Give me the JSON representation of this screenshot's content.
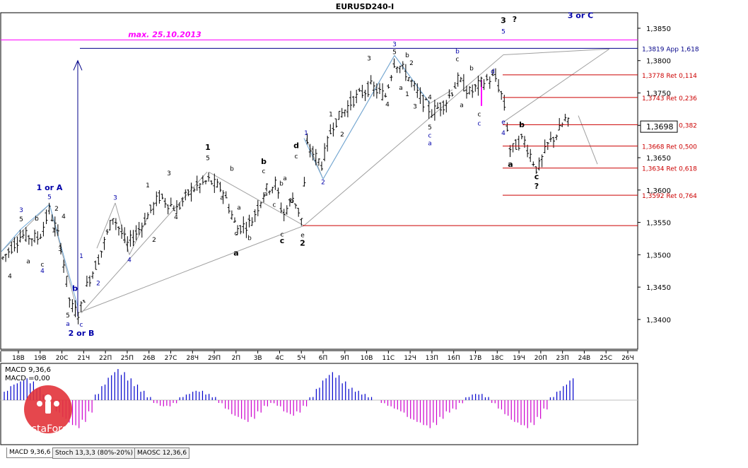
{
  "window_title": "EURUSD240-I",
  "colors": {
    "background": "#ffffff",
    "candle": "#000000",
    "magenta": "#ff00ff",
    "blue_label": "#0000aa",
    "red_level": "#cc0000",
    "grid": "#000000",
    "macd_pos": "#0000cc",
    "macd_neg": "#cc00cc",
    "logo": "#e2333a"
  },
  "annotations": {
    "max_label": "max. 25.10.2013",
    "wave_top_label": "3 or C",
    "one_or_a": "1 or A",
    "two_or_b": "2 or B",
    "question_top": "?",
    "question_low": "?"
  },
  "chart_data": {
    "type": "candlestick",
    "title": "EURUSD240-I",
    "ylim": [
      1.3354,
      1.3874
    ],
    "y_ticks": [
      "1,3850",
      "1,3800",
      "1,3750",
      "1,3700",
      "1,3650",
      "1,3600",
      "1,3550",
      "1,3500",
      "1,3450",
      "1,3400"
    ],
    "y_tick_values": [
      1.385,
      1.38,
      1.375,
      1.37,
      1.365,
      1.36,
      1.355,
      1.35,
      1.345,
      1.34
    ],
    "current_price_label": "1,3698",
    "current_price": 1.3698,
    "x_ticks": [
      "18В",
      "19В",
      "20С",
      "21Ч",
      "22П",
      "25П",
      "26В",
      "27С",
      "28Ч",
      "29П",
      "2П",
      "3В",
      "4С",
      "5Ч",
      "6П",
      "9П",
      "10В",
      "11С",
      "12Ч",
      "13П",
      "16П",
      "17В",
      "18С",
      "19Ч",
      "20П",
      "23П",
      "24В",
      "25С",
      "26Ч"
    ],
    "levels": [
      {
        "label": "1,3819 App 1,618",
        "value": 1.3819
      },
      {
        "label": "1,3778 Ret 0,114",
        "value": 1.3778
      },
      {
        "label": "1,3743 Ret 0,236",
        "value": 1.3743
      },
      {
        "label": "1,3701 Ret 0,382",
        "value": 1.3701
      },
      {
        "label": "1,3668 Ret 0,500",
        "value": 1.3668
      },
      {
        "label": "1,3634 Ret 0,618",
        "value": 1.3634
      },
      {
        "label": "1,3592 Ret 0,764",
        "value": 1.3592
      }
    ],
    "max_level": 1.3832,
    "wave_labels": [
      {
        "t": "4",
        "x": 14,
        "p": 1.3464,
        "c": "#000000",
        "b": 0
      },
      {
        "t": "3",
        "x": 30,
        "p": 1.3566,
        "c": "#0000aa",
        "b": 0
      },
      {
        "t": "5",
        "x": 30,
        "p": 1.3552,
        "c": "#000000",
        "b": 0
      },
      {
        "t": "a",
        "x": 40,
        "p": 1.3487,
        "c": "#000000",
        "b": 0
      },
      {
        "t": "b",
        "x": 52,
        "p": 1.3553,
        "c": "#000000",
        "b": 0
      },
      {
        "t": "c",
        "x": 60,
        "p": 1.3482,
        "c": "#000000",
        "b": 0
      },
      {
        "t": "4",
        "x": 60,
        "p": 1.3472,
        "c": "#0000aa",
        "b": 0
      },
      {
        "t": "1 or A",
        "x": 70,
        "p": 1.36,
        "c": "#0000aa",
        "b": 1
      },
      {
        "t": "5",
        "x": 70,
        "p": 1.3586,
        "c": "#0000aa",
        "b": 0
      },
      {
        "t": "2",
        "x": 80,
        "p": 1.3568,
        "c": "#000000",
        "b": 0
      },
      {
        "t": "4",
        "x": 90,
        "p": 1.3556,
        "c": "#000000",
        "b": 0
      },
      {
        "t": "1",
        "x": 76,
        "p": 1.3535,
        "c": "#000000",
        "b": 0
      },
      {
        "t": "3",
        "x": 85,
        "p": 1.3506,
        "c": "#000000",
        "b": 0
      },
      {
        "t": "5",
        "x": 96,
        "p": 1.3403,
        "c": "#000000",
        "b": 0
      },
      {
        "t": "a",
        "x": 96,
        "p": 1.339,
        "c": "#0000aa",
        "b": 0
      },
      {
        "t": "b",
        "x": 106,
        "p": 1.3444,
        "c": "#0000aa",
        "b": 1
      },
      {
        "t": "c",
        "x": 115,
        "p": 1.3389,
        "c": "#0000aa",
        "b": 0
      },
      {
        "t": "2 or B",
        "x": 115,
        "p": 1.3375,
        "c": "#0000aa",
        "b": 1
      },
      {
        "t": "1",
        "x": 115,
        "p": 1.3495,
        "c": "#0000aa",
        "b": 0
      },
      {
        "t": "2",
        "x": 139,
        "p": 1.3453,
        "c": "#0000aa",
        "b": 0
      },
      {
        "t": "3",
        "x": 163,
        "p": 1.3585,
        "c": "#0000aa",
        "b": 0
      },
      {
        "t": "4",
        "x": 183,
        "p": 1.3489,
        "c": "#0000aa",
        "b": 0
      },
      {
        "t": "2",
        "x": 218,
        "p": 1.352,
        "c": "#000000",
        "b": 0
      },
      {
        "t": "1",
        "x": 209,
        "p": 1.3604,
        "c": "#000000",
        "b": 0
      },
      {
        "t": "3",
        "x": 239,
        "p": 1.3623,
        "c": "#000000",
        "b": 0
      },
      {
        "t": "4",
        "x": 249,
        "p": 1.3555,
        "c": "#000000",
        "b": 0
      },
      {
        "t": "1",
        "x": 294,
        "p": 1.3662,
        "c": "#000000",
        "b": 1
      },
      {
        "t": "5",
        "x": 294,
        "p": 1.3646,
        "c": "#000000",
        "b": 0
      },
      {
        "t": "b",
        "x": 328,
        "p": 1.363,
        "c": "#000000",
        "b": 0
      },
      {
        "t": "a",
        "x": 314,
        "p": 1.3585,
        "c": "#000000",
        "b": 0
      },
      {
        "t": "a",
        "x": 338,
        "p": 1.357,
        "c": "#000000",
        "b": 0
      },
      {
        "t": "c",
        "x": 334,
        "p": 1.353,
        "c": "#000000",
        "b": 0
      },
      {
        "t": "a",
        "x": 334,
        "p": 1.3499,
        "c": "#000000",
        "b": 1
      },
      {
        "t": "b",
        "x": 353,
        "p": 1.3523,
        "c": "#000000",
        "b": 0
      },
      {
        "t": "b",
        "x": 373,
        "p": 1.364,
        "c": "#000000",
        "b": 1
      },
      {
        "t": "c",
        "x": 373,
        "p": 1.3626,
        "c": "#000000",
        "b": 0
      },
      {
        "t": "a",
        "x": 376,
        "p": 1.3591,
        "c": "#000000",
        "b": 0
      },
      {
        "t": "c",
        "x": 388,
        "p": 1.3574,
        "c": "#000000",
        "b": 0
      },
      {
        "t": "a",
        "x": 403,
        "p": 1.3615,
        "c": "#000000",
        "b": 0
      },
      {
        "t": "b",
        "x": 398,
        "p": 1.3607,
        "c": "#000000",
        "b": 0
      },
      {
        "t": "c",
        "x": 399,
        "p": 1.3528,
        "c": "#000000",
        "b": 0
      },
      {
        "t": "c",
        "x": 399,
        "p": 1.3518,
        "c": "#000000",
        "b": 1
      },
      {
        "t": "b",
        "x": 413,
        "p": 1.358,
        "c": "#000000",
        "b": 0
      },
      {
        "t": "d",
        "x": 419,
        "p": 1.3665,
        "c": "#000000",
        "b": 1
      },
      {
        "t": "c",
        "x": 419,
        "p": 1.3649,
        "c": "#000000",
        "b": 0
      },
      {
        "t": "e",
        "x": 428,
        "p": 1.3527,
        "c": "#000000",
        "b": 0
      },
      {
        "t": "2",
        "x": 428,
        "p": 1.3514,
        "c": "#000000",
        "b": 1
      },
      {
        "t": "1",
        "x": 433,
        "p": 1.3685,
        "c": "#0000aa",
        "b": 0
      },
      {
        "t": "2",
        "x": 457,
        "p": 1.3609,
        "c": "#0000aa",
        "b": 0
      },
      {
        "t": "1",
        "x": 468,
        "p": 1.3714,
        "c": "#000000",
        "b": 0
      },
      {
        "t": "2",
        "x": 484,
        "p": 1.3683,
        "c": "#000000",
        "b": 0
      },
      {
        "t": "3",
        "x": 522,
        "p": 1.38,
        "c": "#000000",
        "b": 0
      },
      {
        "t": "4",
        "x": 548,
        "p": 1.3729,
        "c": "#000000",
        "b": 0
      },
      {
        "t": "3",
        "x": 558,
        "p": 1.3822,
        "c": "#0000aa",
        "b": 0
      },
      {
        "t": "5",
        "x": 558,
        "p": 1.381,
        "c": "#000000",
        "b": 0
      },
      {
        "t": "b",
        "x": 576,
        "p": 1.3805,
        "c": "#000000",
        "b": 0
      },
      {
        "t": "2",
        "x": 582,
        "p": 1.3793,
        "c": "#000000",
        "b": 0
      },
      {
        "t": "a",
        "x": 567,
        "p": 1.3755,
        "c": "#000000",
        "b": 0
      },
      {
        "t": "1",
        "x": 576,
        "p": 1.3745,
        "c": "#000000",
        "b": 0
      },
      {
        "t": "3",
        "x": 587,
        "p": 1.3726,
        "c": "#000000",
        "b": 0
      },
      {
        "t": "4",
        "x": 608,
        "p": 1.374,
        "c": "#000000",
        "b": 0
      },
      {
        "t": "5",
        "x": 608,
        "p": 1.3694,
        "c": "#000000",
        "b": 0
      },
      {
        "t": "c",
        "x": 608,
        "p": 1.3681,
        "c": "#0000aa",
        "b": 0
      },
      {
        "t": "a",
        "x": 608,
        "p": 1.3669,
        "c": "#0000aa",
        "b": 0
      },
      {
        "t": "b",
        "x": 647,
        "p": 1.3811,
        "c": "#0000aa",
        "b": 0
      },
      {
        "t": "c",
        "x": 647,
        "p": 1.3799,
        "c": "#000000",
        "b": 0
      },
      {
        "t": "b",
        "x": 667,
        "p": 1.3785,
        "c": "#000000",
        "b": 0
      },
      {
        "t": "a",
        "x": 653,
        "p": 1.3728,
        "c": "#000000",
        "b": 0
      },
      {
        "t": "c",
        "x": 678,
        "p": 1.3714,
        "c": "#000000",
        "b": 0
      },
      {
        "t": "c",
        "x": 678,
        "p": 1.37,
        "c": "#0000aa",
        "b": 0
      },
      {
        "t": "d",
        "x": 697,
        "p": 1.378,
        "c": "#0000aa",
        "b": 0
      },
      {
        "t": "3",
        "x": 712,
        "p": 1.3858,
        "c": "#000000",
        "b": 1
      },
      {
        "t": "5",
        "x": 712,
        "p": 1.3842,
        "c": "#0000aa",
        "b": 0
      },
      {
        "t": "?",
        "x": 728,
        "p": 1.386,
        "c": "#000000",
        "b": 1
      },
      {
        "t": "e",
        "x": 712,
        "p": 1.3702,
        "c": "#0000aa",
        "b": 0
      },
      {
        "t": "4",
        "x": 712,
        "p": 1.3685,
        "c": "#0000aa",
        "b": 0
      },
      {
        "t": "b",
        "x": 738,
        "p": 1.3697,
        "c": "#000000",
        "b": 1
      },
      {
        "t": "a",
        "x": 722,
        "p": 1.3636,
        "c": "#000000",
        "b": 1
      },
      {
        "t": "c",
        "x": 759,
        "p": 1.3617,
        "c": "#000000",
        "b": 1
      },
      {
        "t": "?",
        "x": 759,
        "p": 1.3602,
        "c": "#000000",
        "b": 1
      },
      {
        "t": "3 or C",
        "x": 821,
        "p": 1.3866,
        "c": "#0000aa",
        "b": 1
      }
    ],
    "macd": {
      "label1": "MACD 9,36,6",
      "label2": "MACD =0,00",
      "values": [
        0.3,
        0.5,
        0.6,
        0.7,
        0.6,
        0.4,
        0.2,
        -0.1,
        -0.4,
        -0.6,
        -0.8,
        -0.9,
        -0.7,
        -0.4,
        0.2,
        0.5,
        0.8,
        1.0,
        0.9,
        0.7,
        0.5,
        0.3,
        0.1,
        -0.1,
        -0.2,
        -0.2,
        -0.1,
        0.1,
        0.2,
        0.3,
        0.3,
        0.2,
        0.1,
        -0.1,
        -0.3,
        -0.5,
        -0.6,
        -0.7,
        -0.6,
        -0.4,
        -0.2,
        -0.1,
        -0.2,
        -0.4,
        -0.5,
        -0.4,
        -0.2,
        0.1,
        0.4,
        0.7,
        0.9,
        0.8,
        0.6,
        0.4,
        0.3,
        0.2,
        0.1,
        0.0,
        -0.1,
        -0.2,
        -0.3,
        -0.4,
        -0.6,
        -0.7,
        -0.8,
        -0.9,
        -0.8,
        -0.6,
        -0.4,
        -0.3,
        -0.1,
        0.1,
        0.2,
        0.2,
        0.1,
        -0.1,
        -0.3,
        -0.5,
        -0.7,
        -0.8,
        -0.9,
        -0.8,
        -0.6,
        -0.3,
        0.1,
        0.3,
        0.5,
        0.7
      ]
    }
  },
  "tabs": [
    {
      "label": "MACD 9,36,6"
    },
    {
      "label": "Stoch 13,3,3 (80%-20%)"
    },
    {
      "label": "MAOSC 12,36,6"
    }
  ],
  "logo": {
    "text": "InstaForex"
  }
}
